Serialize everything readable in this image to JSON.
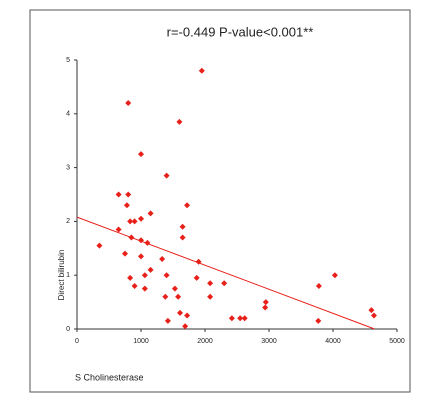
{
  "chart_data": {
    "type": "scatter",
    "title": "r=-0.449    P-value<0.001**",
    "x_label": "S Cholinesterase",
    "y_label": "Direct bilirubin",
    "xlim": [
      0,
      5000
    ],
    "ylim": [
      0,
      5
    ],
    "xticks": [
      0,
      1000,
      2000,
      3000,
      4000,
      5000
    ],
    "yticks": [
      0,
      1,
      2,
      3,
      4,
      5
    ],
    "series": [
      {
        "color": "#e8201a",
        "x": [
          800,
          1950,
          1600,
          1000,
          1400,
          650,
          800,
          1720,
          780,
          1150,
          1000,
          900,
          830,
          650,
          1650,
          350,
          850,
          1000,
          1100,
          1650,
          750,
          1000,
          1330,
          1900,
          1150,
          1060,
          830,
          1870,
          1400,
          900,
          1060,
          1530,
          2080,
          2300,
          4030,
          3780,
          1380,
          1580,
          2080,
          2950,
          2940,
          1610,
          1720,
          1420,
          2420,
          2550,
          2620,
          4600,
          4640,
          3770,
          1690
        ],
        "values": [
          4.2,
          4.8,
          3.85,
          3.25,
          2.85,
          2.5,
          2.5,
          2.3,
          2.3,
          2.15,
          2.05,
          2.0,
          2.0,
          1.85,
          1.9,
          1.55,
          1.7,
          1.65,
          1.6,
          1.7,
          1.4,
          1.35,
          1.3,
          1.25,
          1.1,
          1.0,
          0.95,
          0.95,
          1.0,
          0.8,
          0.75,
          0.75,
          0.85,
          0.85,
          1.0,
          0.8,
          0.6,
          0.6,
          0.6,
          0.5,
          0.4,
          0.3,
          0.25,
          0.15,
          0.2,
          0.2,
          0.2,
          0.35,
          0.25,
          0.15,
          0.05
        ]
      }
    ],
    "fit_line": {
      "color": "#e8201a",
      "x": [
        0,
        4650
      ],
      "values": [
        2.08,
        0
      ]
    }
  }
}
